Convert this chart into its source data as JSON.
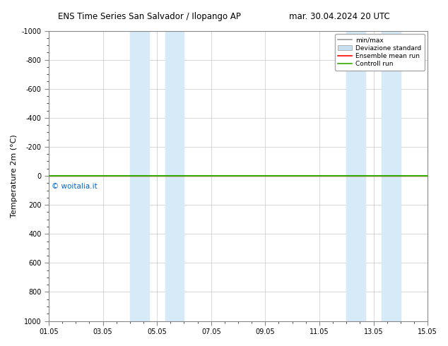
{
  "title_left": "ENS Time Series San Salvador / Ilopango AP",
  "title_right": "mar. 30.04.2024 20 UTC",
  "ylabel": "Temperature 2m (°C)",
  "ylim": [
    -1000,
    1000
  ],
  "xlim": [
    0,
    14
  ],
  "yticks": [
    -1000,
    -800,
    -600,
    -400,
    -200,
    0,
    200,
    400,
    600,
    800,
    1000
  ],
  "xtick_positions": [
    0,
    2,
    4,
    6,
    8,
    10,
    12,
    14
  ],
  "xtick_labels": [
    "01.05",
    "03.05",
    "05.05",
    "07.05",
    "09.05",
    "11.05",
    "13.05",
    "15.05"
  ],
  "shaded_bands": [
    [
      3.0,
      3.7
    ],
    [
      4.3,
      5.0
    ],
    [
      11.0,
      11.7
    ],
    [
      12.3,
      13.0
    ]
  ],
  "shaded_color": "#d6eaf8",
  "line_y": 0.0,
  "ensemble_mean_color": "#ff0000",
  "control_run_color": "#33aa00",
  "minmax_color": "#999999",
  "watermark": "© woitalia.it",
  "watermark_color": "#0066cc",
  "watermark_x_data": 0.1,
  "watermark_y_data": 50,
  "legend_labels": [
    "min/max",
    "Deviazione standard",
    "Ensemble mean run",
    "Controll run"
  ],
  "legend_minmax_color": "#999999",
  "legend_devstd_color": "#c8dff0",
  "background_color": "#ffffff",
  "grid_color": "#bbbbbb",
  "spine_color": "#888888",
  "title_fontsize": 8.5,
  "tick_fontsize": 7,
  "ylabel_fontsize": 8
}
